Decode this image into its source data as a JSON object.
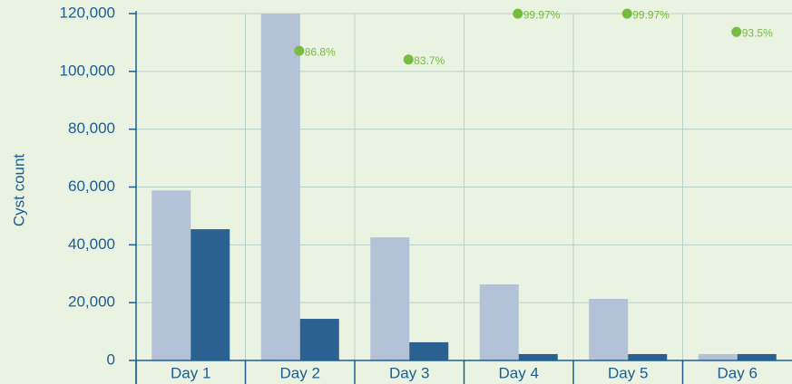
{
  "chart_data": {
    "type": "bar",
    "categories": [
      "Day 1",
      "Day 2",
      "Day 3",
      "Day 4",
      "Day 5",
      "Day 6"
    ],
    "y_label": "Cyst count",
    "series": [
      {
        "color": "#b3c2d6",
        "values": [
          58800,
          120000,
          42600,
          26300,
          21300,
          2200
        ]
      },
      {
        "color": "#2b6190",
        "values": [
          45400,
          14400,
          6300,
          2200,
          2200,
          2200
        ]
      },
      {
        "color": "#77bb41",
        "axis": "y2",
        "values": [
          null,
          86.8,
          83.7,
          99.97,
          99.97,
          93.5
        ],
        "value_labels": [
          null,
          "86.8%",
          "83.7%",
          "99.97%",
          "99.97%",
          "93.5%"
        ]
      }
    ],
    "ylim": [
      0,
      120000
    ],
    "yticks": [
      0,
      {
        "value": 20000,
        "label": "20,000"
      },
      {
        "value": 40000,
        "label": "40,000"
      },
      {
        "value": 60000,
        "label": "60,000"
      },
      {
        "value": 80000,
        "label": "80,000"
      },
      {
        "value": 100000,
        "label": "100,000"
      },
      {
        "value": 120000,
        "label": "120,000"
      }
    ],
    "y2lim": [
      -23,
      100
    ],
    "grid": true
  }
}
